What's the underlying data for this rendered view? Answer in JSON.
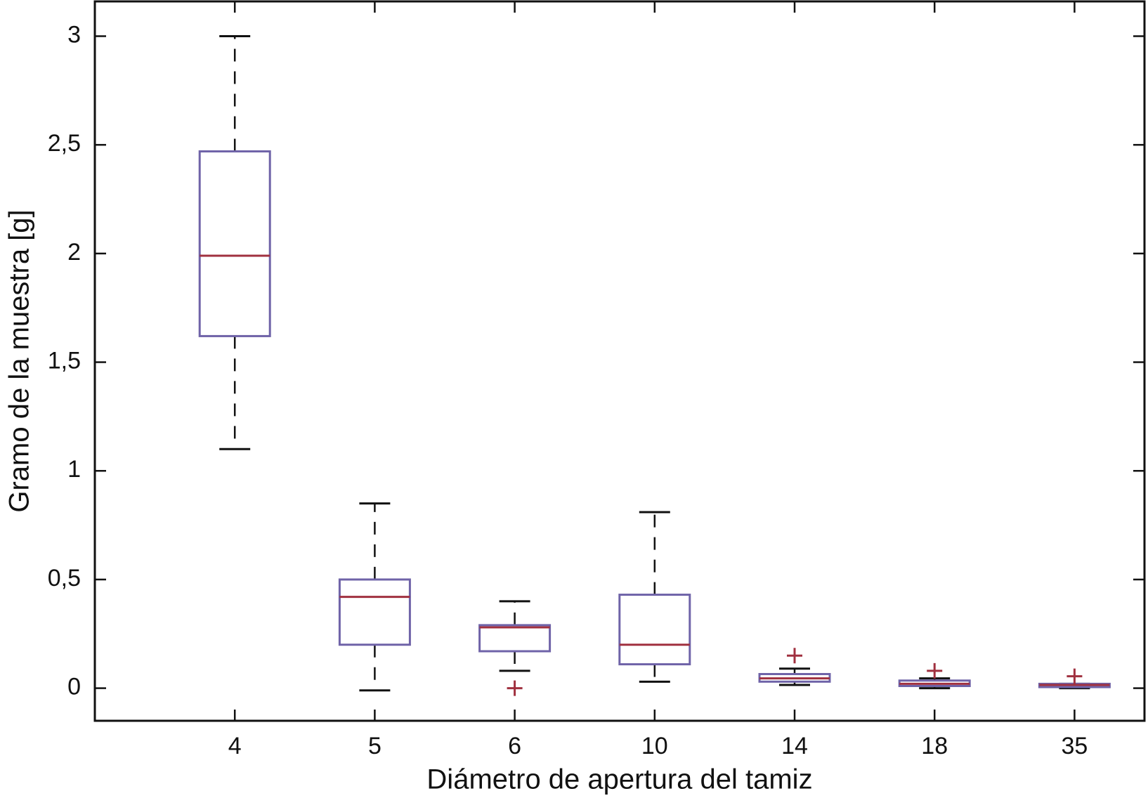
{
  "chart_data": {
    "type": "box",
    "x_label": "Diámetro de apertura del tamiz",
    "y_label": "Gramo de la muestra [g]",
    "categories": [
      "4",
      "5",
      "6",
      "10",
      "14",
      "18",
      "35"
    ],
    "boxes": [
      {
        "whisker_low": 1.1,
        "q1": 1.62,
        "median": 1.99,
        "q3": 2.47,
        "whisker_high": 3.0,
        "outliers": []
      },
      {
        "whisker_low": -0.01,
        "q1": 0.2,
        "median": 0.42,
        "q3": 0.5,
        "whisker_high": 0.85,
        "outliers": []
      },
      {
        "whisker_low": 0.08,
        "q1": 0.17,
        "median": 0.28,
        "q3": 0.29,
        "whisker_high": 0.4,
        "outliers": [
          0.0
        ]
      },
      {
        "whisker_low": 0.03,
        "q1": 0.11,
        "median": 0.2,
        "q3": 0.43,
        "whisker_high": 0.81,
        "outliers": []
      },
      {
        "whisker_low": 0.015,
        "q1": 0.03,
        "median": 0.045,
        "q3": 0.065,
        "whisker_high": 0.09,
        "outliers": [
          0.15
        ]
      },
      {
        "whisker_low": 0.0,
        "q1": 0.01,
        "median": 0.02,
        "q3": 0.035,
        "whisker_high": 0.045,
        "outliers": [
          0.08
        ]
      },
      {
        "whisker_low": 0.0,
        "q1": 0.005,
        "median": 0.015,
        "q3": 0.02,
        "whisker_high": 0.02,
        "outliers": [
          0.055
        ]
      }
    ],
    "box_color": "#6f63a8",
    "median_color": "#a0303f",
    "whisker_color": "#111111",
    "outlier_color": "#a0303f",
    "ylim": [
      -0.15,
      3.16
    ],
    "yticks": [
      0,
      {
        "value": 0.5,
        "label": "0,5"
      },
      1,
      {
        "value": 1.5,
        "label": "1,5"
      },
      2,
      {
        "value": 2.5,
        "label": "2,5"
      },
      3
    ],
    "grid": false
  }
}
